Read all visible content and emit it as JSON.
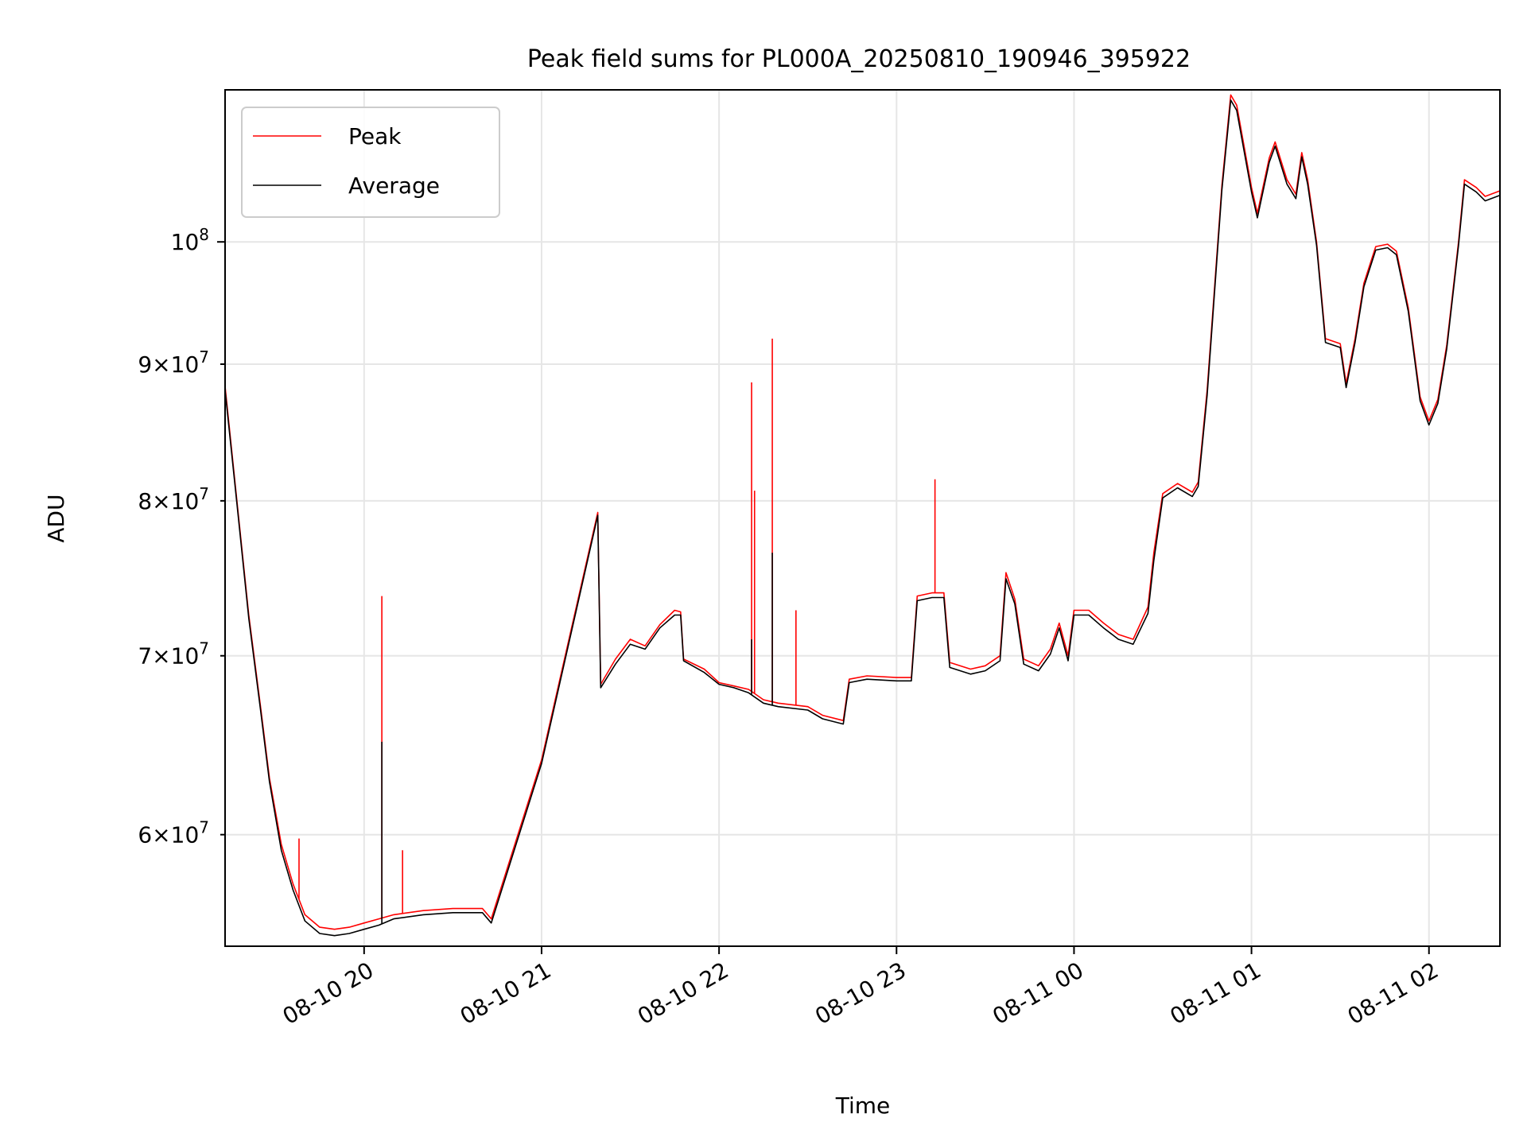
{
  "chart_data": {
    "type": "line",
    "title": "Peak field sums for PL000A_20250810_190946_395922",
    "xlabel": "Time",
    "ylabel": "ADU",
    "yscale": "log",
    "grid": true,
    "legend_position": "upper-left",
    "xlim": [
      "2025-08-10 19:13",
      "2025-08-11 02:24"
    ],
    "ylim": [
      54500000,
      114000000
    ],
    "x_ticks": [
      {
        "value": "2025-08-10 20:00",
        "label": "08-10 20"
      },
      {
        "value": "2025-08-10 21:00",
        "label": "08-10 21"
      },
      {
        "value": "2025-08-10 22:00",
        "label": "08-10 22"
      },
      {
        "value": "2025-08-10 23:00",
        "label": "08-10 23"
      },
      {
        "value": "2025-08-11 00:00",
        "label": "08-11 00"
      },
      {
        "value": "2025-08-11 01:00",
        "label": "08-11 01"
      },
      {
        "value": "2025-08-11 02:00",
        "label": "08-11 02"
      }
    ],
    "y_ticks": [
      {
        "value": 60000000,
        "mant": "6",
        "exp": "7",
        "kind": "minor"
      },
      {
        "value": 70000000,
        "mant": "7",
        "exp": "7",
        "kind": "minor"
      },
      {
        "value": 80000000,
        "mant": "8",
        "exp": "7",
        "kind": "minor"
      },
      {
        "value": 90000000,
        "mant": "9",
        "exp": "7",
        "kind": "minor"
      },
      {
        "value": 100000000,
        "mant": "",
        "exp": "8",
        "kind": "major"
      }
    ],
    "series": [
      {
        "name": "Peak",
        "color": "#ff0000",
        "points": [
          [
            "2025-08-10 19:13",
            88300000
          ],
          [
            "2025-08-10 19:17",
            80000000
          ],
          [
            "2025-08-10 19:21",
            72500000
          ],
          [
            "2025-08-10 19:25",
            67000000
          ],
          [
            "2025-08-10 19:28",
            63000000
          ],
          [
            "2025-08-10 19:32",
            59500000
          ],
          [
            "2025-08-10 19:36",
            57500000
          ],
          [
            "2025-08-10 19:40",
            56000000
          ],
          [
            "2025-08-10 19:45",
            55400000
          ],
          [
            "2025-08-10 19:50",
            55300000
          ],
          [
            "2025-08-10 19:55",
            55400000
          ],
          [
            "2025-08-10 20:00",
            55600000
          ],
          [
            "2025-08-10 20:05",
            55800000
          ],
          [
            "2025-08-10 20:10",
            56000000
          ],
          [
            "2025-08-10 20:20",
            56200000
          ],
          [
            "2025-08-10 20:30",
            56300000
          ],
          [
            "2025-08-10 20:40",
            56300000
          ],
          [
            "2025-08-10 20:43",
            55800000
          ],
          [
            "2025-08-10 21:00",
            64000000
          ],
          [
            "2025-08-10 21:19",
            79200000
          ],
          [
            "2025-08-10 21:20",
            68300000
          ],
          [
            "2025-08-10 21:25",
            69800000
          ],
          [
            "2025-08-10 21:30",
            71000000
          ],
          [
            "2025-08-10 21:35",
            70600000
          ],
          [
            "2025-08-10 21:40",
            71900000
          ],
          [
            "2025-08-10 21:45",
            72800000
          ],
          [
            "2025-08-10 21:47",
            72700000
          ],
          [
            "2025-08-10 21:48",
            69800000
          ],
          [
            "2025-08-10 21:55",
            69200000
          ],
          [
            "2025-08-10 22:00",
            68400000
          ],
          [
            "2025-08-10 22:05",
            68200000
          ],
          [
            "2025-08-10 22:10",
            68000000
          ],
          [
            "2025-08-10 22:15",
            67400000
          ],
          [
            "2025-08-10 22:20",
            67200000
          ],
          [
            "2025-08-10 22:30",
            67000000
          ],
          [
            "2025-08-10 22:35",
            66500000
          ],
          [
            "2025-08-10 22:42",
            66200000
          ],
          [
            "2025-08-10 22:44",
            68600000
          ],
          [
            "2025-08-10 22:50",
            68800000
          ],
          [
            "2025-08-10 23:00",
            68700000
          ],
          [
            "2025-08-10 23:05",
            68700000
          ],
          [
            "2025-08-10 23:07",
            73700000
          ],
          [
            "2025-08-10 23:12",
            73900000
          ],
          [
            "2025-08-10 23:16",
            73900000
          ],
          [
            "2025-08-10 23:18",
            69600000
          ],
          [
            "2025-08-10 23:25",
            69200000
          ],
          [
            "2025-08-10 23:30",
            69400000
          ],
          [
            "2025-08-10 23:35",
            70000000
          ],
          [
            "2025-08-10 23:37",
            75200000
          ],
          [
            "2025-08-10 23:40",
            73500000
          ],
          [
            "2025-08-10 23:43",
            69800000
          ],
          [
            "2025-08-10 23:48",
            69400000
          ],
          [
            "2025-08-10 23:52",
            70400000
          ],
          [
            "2025-08-10 23:55",
            72000000
          ],
          [
            "2025-08-10 23:58",
            70000000
          ],
          [
            "2025-08-11 00:00",
            72800000
          ],
          [
            "2025-08-11 00:05",
            72800000
          ],
          [
            "2025-08-11 00:10",
            72000000
          ],
          [
            "2025-08-11 00:15",
            71300000
          ],
          [
            "2025-08-11 00:20",
            71000000
          ],
          [
            "2025-08-11 00:25",
            73000000
          ],
          [
            "2025-08-11 00:27",
            76500000
          ],
          [
            "2025-08-11 00:30",
            80500000
          ],
          [
            "2025-08-11 00:35",
            81200000
          ],
          [
            "2025-08-11 00:40",
            80600000
          ],
          [
            "2025-08-11 00:42",
            81300000
          ],
          [
            "2025-08-11 00:45",
            88000000
          ],
          [
            "2025-08-11 00:50",
            105000000
          ],
          [
            "2025-08-11 00:53",
            113500000
          ],
          [
            "2025-08-11 00:55",
            112500000
          ],
          [
            "2025-08-11 01:00",
            104800000
          ],
          [
            "2025-08-11 01:02",
            102500000
          ],
          [
            "2025-08-11 01:06",
            107500000
          ],
          [
            "2025-08-11 01:08",
            109000000
          ],
          [
            "2025-08-11 01:12",
            105500000
          ],
          [
            "2025-08-11 01:15",
            104200000
          ],
          [
            "2025-08-11 01:17",
            108000000
          ],
          [
            "2025-08-11 01:19",
            105500000
          ],
          [
            "2025-08-11 01:22",
            100000000
          ],
          [
            "2025-08-11 01:25",
            92000000
          ],
          [
            "2025-08-11 01:30",
            91600000
          ],
          [
            "2025-08-11 01:32",
            88500000
          ],
          [
            "2025-08-11 01:35",
            92000000
          ],
          [
            "2025-08-11 01:38",
            96500000
          ],
          [
            "2025-08-11 01:42",
            99600000
          ],
          [
            "2025-08-11 01:46",
            99800000
          ],
          [
            "2025-08-11 01:49",
            99200000
          ],
          [
            "2025-08-11 01:53",
            94500000
          ],
          [
            "2025-08-11 01:57",
            87500000
          ],
          [
            "2025-08-11 02:00",
            85700000
          ],
          [
            "2025-08-11 02:03",
            87300000
          ],
          [
            "2025-08-11 02:06",
            91500000
          ],
          [
            "2025-08-11 02:10",
            100000000
          ],
          [
            "2025-08-11 02:12",
            105500000
          ],
          [
            "2025-08-11 02:16",
            104800000
          ],
          [
            "2025-08-11 02:19",
            104000000
          ],
          [
            "2025-08-11 02:24",
            104500000
          ]
        ],
        "spikes": [
          [
            "2025-08-10 19:38",
            59800000
          ],
          [
            "2025-08-10 20:06",
            73700000
          ],
          [
            "2025-08-10 20:13",
            59200000
          ],
          [
            "2025-08-10 22:11",
            88600000
          ],
          [
            "2025-08-10 22:12",
            80700000
          ],
          [
            "2025-08-10 22:18",
            92000000
          ],
          [
            "2025-08-10 22:26",
            72800000
          ],
          [
            "2025-08-10 23:13",
            81500000
          ]
        ]
      },
      {
        "name": "Average",
        "color": "#000000",
        "points": [
          [
            "2025-08-10 19:13",
            88000000
          ],
          [
            "2025-08-10 19:17",
            79800000
          ],
          [
            "2025-08-10 19:21",
            72300000
          ],
          [
            "2025-08-10 19:25",
            66800000
          ],
          [
            "2025-08-10 19:28",
            62800000
          ],
          [
            "2025-08-10 19:32",
            59200000
          ],
          [
            "2025-08-10 19:36",
            57200000
          ],
          [
            "2025-08-10 19:40",
            55700000
          ],
          [
            "2025-08-10 19:45",
            55100000
          ],
          [
            "2025-08-10 19:50",
            55000000
          ],
          [
            "2025-08-10 19:55",
            55100000
          ],
          [
            "2025-08-10 20:00",
            55300000
          ],
          [
            "2025-08-10 20:05",
            55500000
          ],
          [
            "2025-08-10 20:10",
            55800000
          ],
          [
            "2025-08-10 20:20",
            56000000
          ],
          [
            "2025-08-10 20:30",
            56100000
          ],
          [
            "2025-08-10 20:40",
            56100000
          ],
          [
            "2025-08-10 20:43",
            55600000
          ],
          [
            "2025-08-10 21:00",
            63800000
          ],
          [
            "2025-08-10 21:19",
            79000000
          ],
          [
            "2025-08-10 21:20",
            68100000
          ],
          [
            "2025-08-10 21:25",
            69500000
          ],
          [
            "2025-08-10 21:30",
            70700000
          ],
          [
            "2025-08-10 21:35",
            70400000
          ],
          [
            "2025-08-10 21:40",
            71700000
          ],
          [
            "2025-08-10 21:45",
            72500000
          ],
          [
            "2025-08-10 21:47",
            72500000
          ],
          [
            "2025-08-10 21:48",
            69700000
          ],
          [
            "2025-08-10 21:55",
            69000000
          ],
          [
            "2025-08-10 22:00",
            68300000
          ],
          [
            "2025-08-10 22:05",
            68100000
          ],
          [
            "2025-08-10 22:10",
            67800000
          ],
          [
            "2025-08-10 22:15",
            67200000
          ],
          [
            "2025-08-10 22:20",
            67000000
          ],
          [
            "2025-08-10 22:30",
            66800000
          ],
          [
            "2025-08-10 22:35",
            66300000
          ],
          [
            "2025-08-10 22:42",
            66000000
          ],
          [
            "2025-08-10 22:44",
            68400000
          ],
          [
            "2025-08-10 22:50",
            68600000
          ],
          [
            "2025-08-10 23:00",
            68500000
          ],
          [
            "2025-08-10 23:05",
            68500000
          ],
          [
            "2025-08-10 23:07",
            73400000
          ],
          [
            "2025-08-10 23:12",
            73600000
          ],
          [
            "2025-08-10 23:16",
            73600000
          ],
          [
            "2025-08-10 23:18",
            69300000
          ],
          [
            "2025-08-10 23:25",
            68900000
          ],
          [
            "2025-08-10 23:30",
            69100000
          ],
          [
            "2025-08-10 23:35",
            69700000
          ],
          [
            "2025-08-10 23:37",
            74800000
          ],
          [
            "2025-08-10 23:40",
            73200000
          ],
          [
            "2025-08-10 23:43",
            69500000
          ],
          [
            "2025-08-10 23:48",
            69100000
          ],
          [
            "2025-08-10 23:52",
            70100000
          ],
          [
            "2025-08-10 23:55",
            71700000
          ],
          [
            "2025-08-10 23:58",
            69700000
          ],
          [
            "2025-08-11 00:00",
            72500000
          ],
          [
            "2025-08-11 00:05",
            72500000
          ],
          [
            "2025-08-11 00:10",
            71700000
          ],
          [
            "2025-08-11 00:15",
            71000000
          ],
          [
            "2025-08-11 00:20",
            70700000
          ],
          [
            "2025-08-11 00:25",
            72600000
          ],
          [
            "2025-08-11 00:27",
            76000000
          ],
          [
            "2025-08-11 00:30",
            80200000
          ],
          [
            "2025-08-11 00:35",
            80900000
          ],
          [
            "2025-08-11 00:40",
            80300000
          ],
          [
            "2025-08-11 00:42",
            81000000
          ],
          [
            "2025-08-11 00:45",
            87600000
          ],
          [
            "2025-08-11 00:50",
            104600000
          ],
          [
            "2025-08-11 00:53",
            113000000
          ],
          [
            "2025-08-11 00:55",
            112000000
          ],
          [
            "2025-08-11 01:00",
            104400000
          ],
          [
            "2025-08-11 01:02",
            102100000
          ],
          [
            "2025-08-11 01:06",
            107100000
          ],
          [
            "2025-08-11 01:08",
            108600000
          ],
          [
            "2025-08-11 01:12",
            105100000
          ],
          [
            "2025-08-11 01:15",
            103800000
          ],
          [
            "2025-08-11 01:17",
            107600000
          ],
          [
            "2025-08-11 01:19",
            105100000
          ],
          [
            "2025-08-11 01:22",
            99700000
          ],
          [
            "2025-08-11 01:25",
            91700000
          ],
          [
            "2025-08-11 01:30",
            91300000
          ],
          [
            "2025-08-11 01:32",
            88200000
          ],
          [
            "2025-08-11 01:35",
            91700000
          ],
          [
            "2025-08-11 01:38",
            96200000
          ],
          [
            "2025-08-11 01:42",
            99300000
          ],
          [
            "2025-08-11 01:46",
            99500000
          ],
          [
            "2025-08-11 01:49",
            98900000
          ],
          [
            "2025-08-11 01:53",
            94200000
          ],
          [
            "2025-08-11 01:57",
            87200000
          ],
          [
            "2025-08-11 02:00",
            85400000
          ],
          [
            "2025-08-11 02:03",
            87000000
          ],
          [
            "2025-08-11 02:06",
            91200000
          ],
          [
            "2025-08-11 02:10",
            99700000
          ],
          [
            "2025-08-11 02:12",
            105100000
          ],
          [
            "2025-08-11 02:16",
            104400000
          ],
          [
            "2025-08-11 02:19",
            103600000
          ],
          [
            "2025-08-11 02:24",
            104100000
          ]
        ],
        "spikes": [
          [
            "2025-08-10 20:06",
            65000000
          ],
          [
            "2025-08-10 22:18",
            76500000
          ],
          [
            "2025-08-10 22:11",
            71000000
          ]
        ]
      }
    ]
  }
}
